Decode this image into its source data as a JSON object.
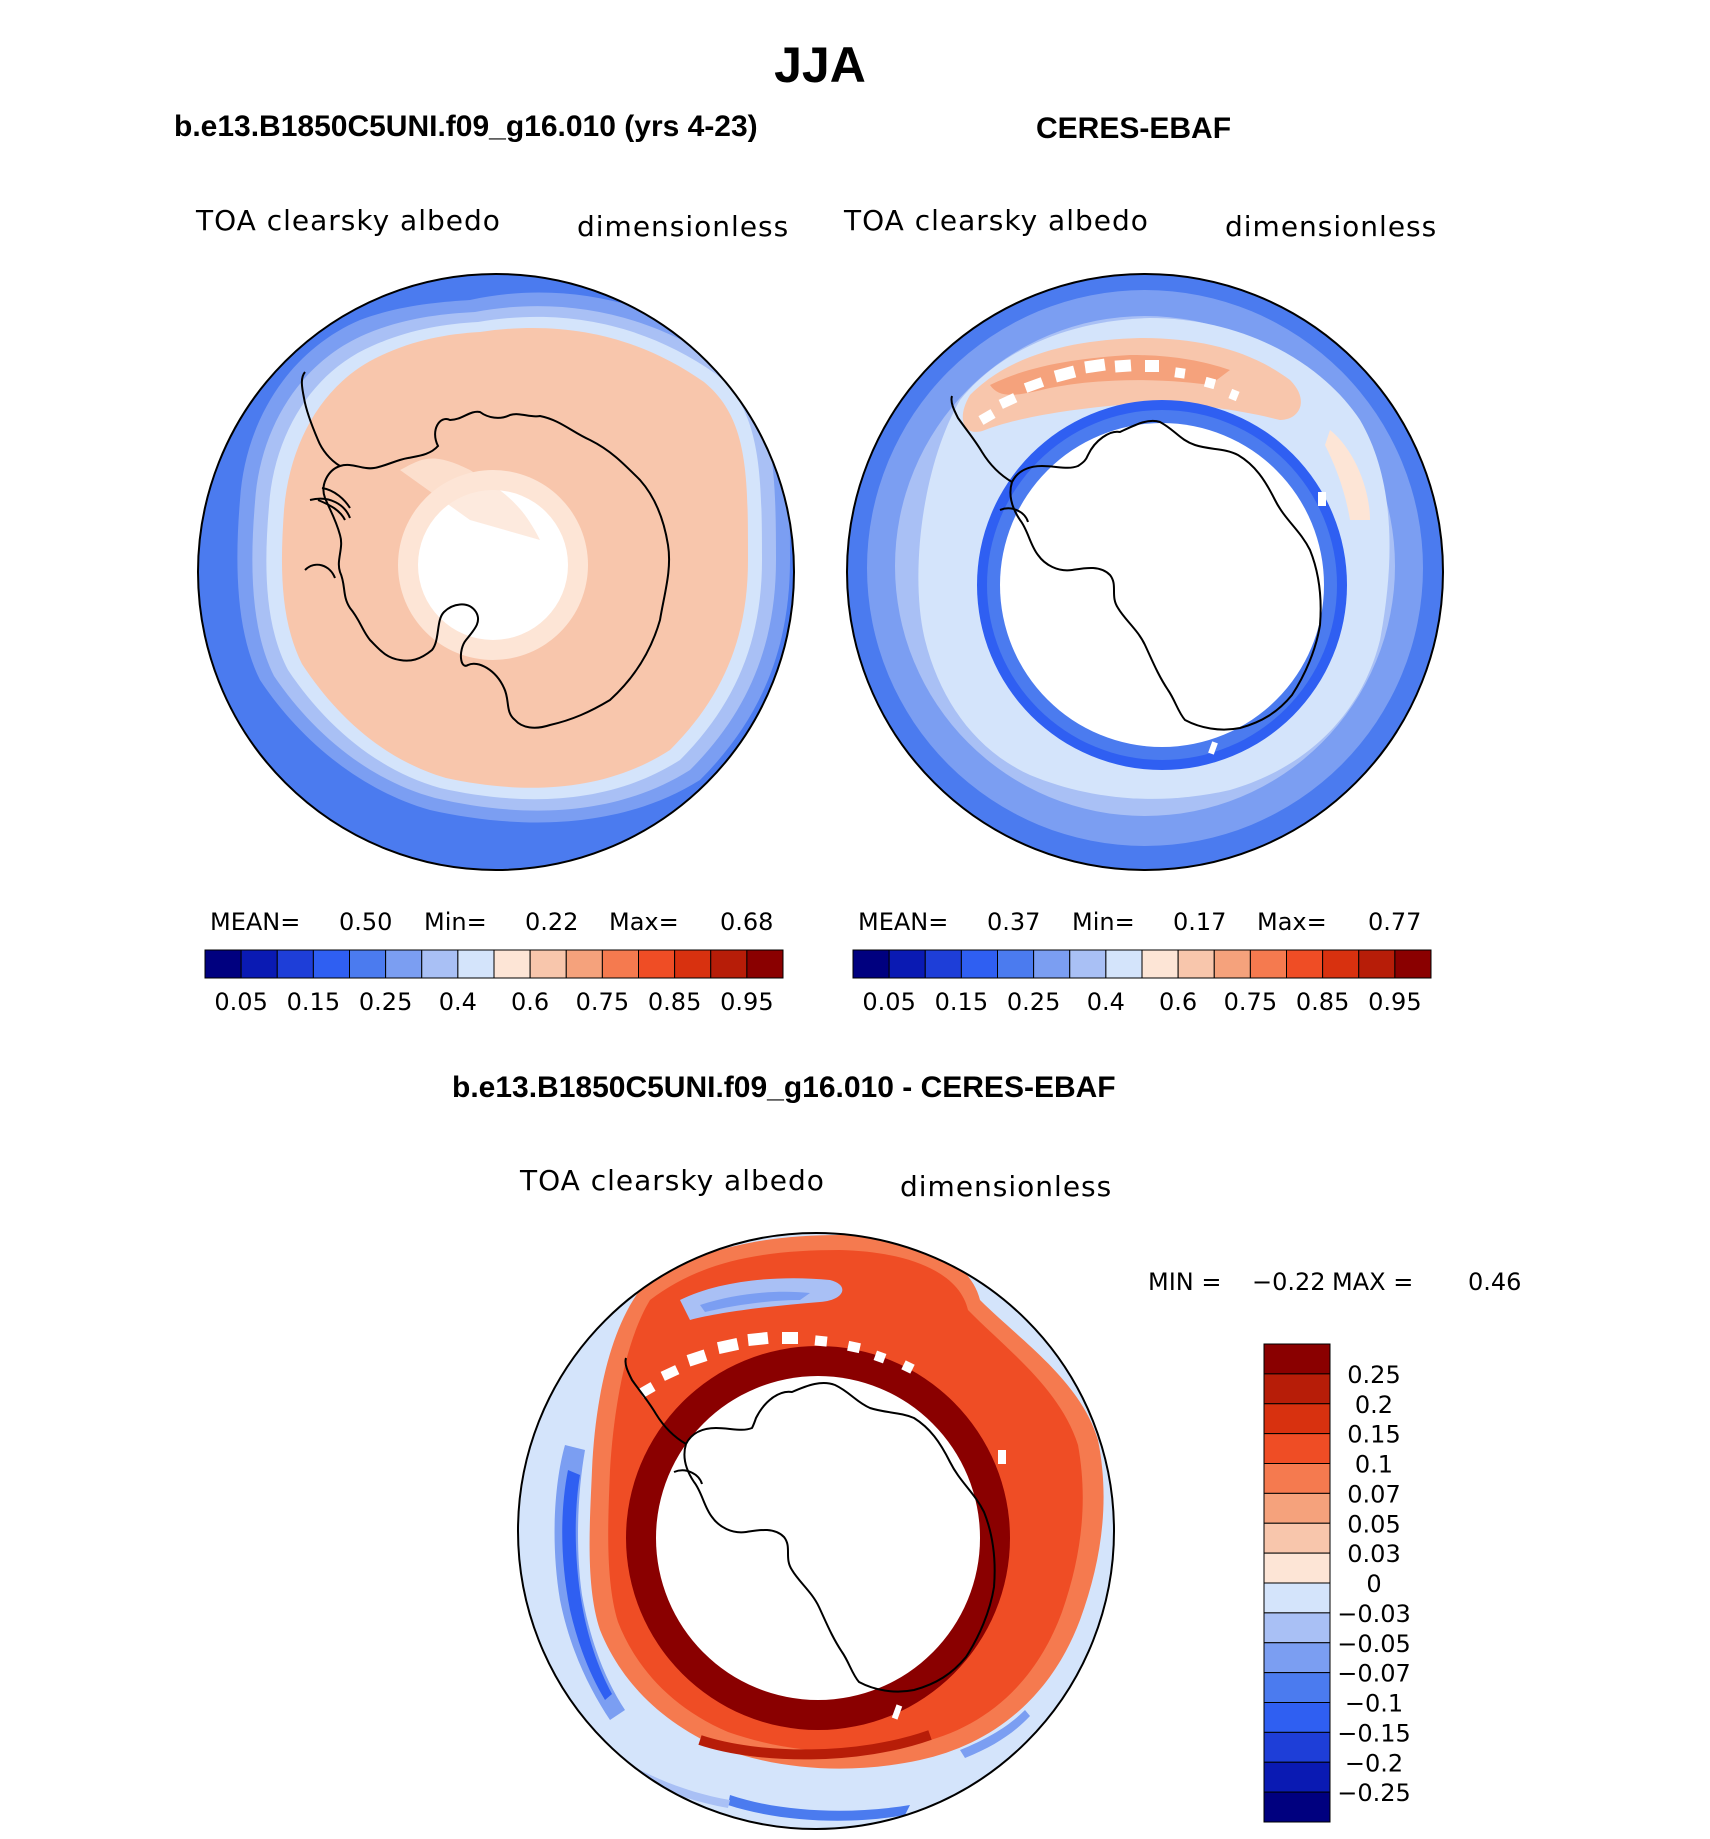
{
  "season": "JJA",
  "palette": {
    "abs_colors": [
      "#00007f",
      "#0a1ab3",
      "#1e3ed8",
      "#2f5ff2",
      "#4b7bef",
      "#7b9ef2",
      "#a9c0f5",
      "#d4e4fb",
      "#fde5d6",
      "#f8c6ac",
      "#f5a27c",
      "#f57a4f",
      "#ef4d25",
      "#d8310f",
      "#b71d08",
      "#8a0000"
    ],
    "abs_tick_labels": [
      "0.05",
      "0.15",
      "0.25",
      "0.4",
      "0.6",
      "0.75",
      "0.85",
      "0.95"
    ],
    "diff_colors": [
      "#8a0000",
      "#b71d08",
      "#d8310f",
      "#ef4d25",
      "#f57a4f",
      "#f5a27c",
      "#f8c6ac",
      "#fde5d6",
      "#d4e4fb",
      "#a9c0f5",
      "#7b9ef2",
      "#4b7bef",
      "#2f5ff2",
      "#1e3ed8",
      "#0a1ab3",
      "#00007f"
    ],
    "diff_tick_labels": [
      "0.25",
      "0.2",
      "0.15",
      "0.1",
      "0.07",
      "0.05",
      "0.03",
      "0",
      "−0.03",
      "−0.05",
      "−0.07",
      "−0.1",
      "−0.15",
      "−0.2",
      "−0.25"
    ]
  },
  "panels": {
    "model": {
      "title": "b.e13.B1850C5UNI.f09_g16.010 (yrs 4-23)",
      "var_label": "TOA clearsky albedo",
      "units": "dimensionless",
      "stats": {
        "mean_label": "MEAN=",
        "mean": "0.50",
        "min_label": "Min=",
        "min": "0.22",
        "max_label": "Max=",
        "max": "0.68"
      }
    },
    "obs": {
      "title": "CERES-EBAF",
      "var_label": "TOA clearsky albedo",
      "units": "dimensionless",
      "stats": {
        "mean_label": "MEAN=",
        "mean": "0.37",
        "min_label": "Min=",
        "min": "0.17",
        "max_label": "Max=",
        "max": "0.77"
      }
    },
    "diff": {
      "title": "b.e13.B1850C5UNI.f09_g16.010 - CERES-EBAF",
      "var_label": "TOA clearsky albedo",
      "units": "dimensionless",
      "stats": {
        "min_label": "MIN =",
        "min": "−0.22",
        "max_label": "MAX =",
        "max": "0.46"
      }
    }
  }
}
